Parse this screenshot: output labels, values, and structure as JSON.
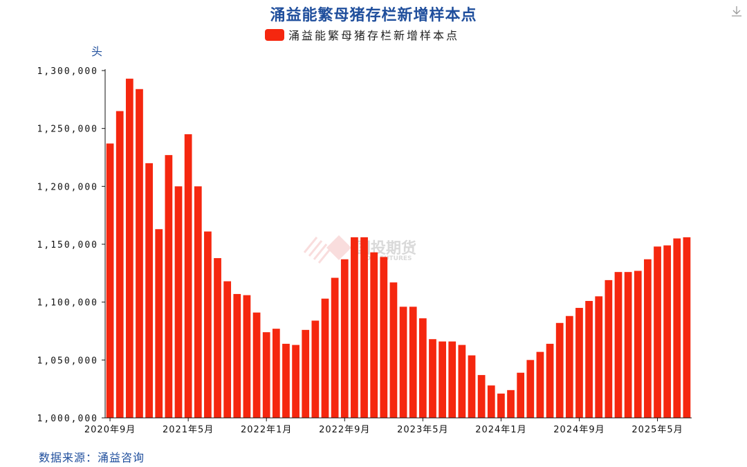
{
  "title": "涌益能繁母猪存栏新增样本点",
  "legend_label": "涌益能繁母猪存栏新增样本点",
  "source": "数据来源：涌益咨询",
  "watermark": {
    "text": "国投期货",
    "subtext": "SDIC FUTURES"
  },
  "download_icon": "download-icon",
  "colors": {
    "bar": "#f5270f",
    "title": "#1f4e9c",
    "axis": "#111111"
  },
  "chart_data": {
    "type": "bar",
    "title": "涌益能繁母猪存栏新增样本点",
    "ylabel": "头",
    "ylim": [
      1000000,
      1300000
    ],
    "yticks": [
      1000000,
      1050000,
      1100000,
      1150000,
      1200000,
      1250000,
      1300000
    ],
    "ytick_labels": [
      "1,000,000",
      "1,050,000",
      "1,100,000",
      "1,150,000",
      "1,200,000",
      "1,250,000",
      "1,300,000"
    ],
    "xtick_labels": [
      {
        "index": 0,
        "label": "2020年9月"
      },
      {
        "index": 8,
        "label": "2021年5月"
      },
      {
        "index": 16,
        "label": "2022年1月"
      },
      {
        "index": 24,
        "label": "2022年9月"
      },
      {
        "index": 32,
        "label": "2023年5月"
      },
      {
        "index": 40,
        "label": "2024年1月"
      },
      {
        "index": 48,
        "label": "2024年9月"
      },
      {
        "index": 56,
        "label": "2025年5月"
      }
    ],
    "categories": [
      "2020-09",
      "2020-10",
      "2020-11",
      "2020-12",
      "2021-01",
      "2021-02",
      "2021-03",
      "2021-04",
      "2021-05",
      "2021-06",
      "2021-07",
      "2021-08",
      "2021-09",
      "2021-10",
      "2021-11",
      "2021-12",
      "2022-01",
      "2022-02",
      "2022-03",
      "2022-04",
      "2022-05",
      "2022-06",
      "2022-07",
      "2022-08",
      "2022-09",
      "2022-10",
      "2022-11",
      "2022-12",
      "2023-01",
      "2023-02",
      "2023-03",
      "2023-04",
      "2023-05",
      "2023-06",
      "2023-07",
      "2023-08",
      "2023-09",
      "2023-10",
      "2023-11",
      "2023-12",
      "2024-01",
      "2024-02",
      "2024-03",
      "2024-04",
      "2024-05",
      "2024-06",
      "2024-07",
      "2024-08",
      "2024-09",
      "2024-10",
      "2024-11",
      "2024-12",
      "2025-01",
      "2025-02",
      "2025-03",
      "2025-04",
      "2025-05",
      "2025-06",
      "2025-07",
      "2025-08"
    ],
    "values": [
      1237000,
      1265000,
      1293000,
      1284000,
      1220000,
      1163000,
      1227000,
      1200000,
      1245000,
      1200000,
      1161000,
      1138000,
      1118000,
      1107000,
      1106000,
      1091000,
      1074000,
      1077000,
      1064000,
      1063000,
      1076000,
      1084000,
      1103000,
      1121000,
      1137000,
      1156000,
      1156000,
      1143000,
      1139000,
      1117000,
      1096000,
      1096000,
      1086000,
      1068000,
      1066000,
      1066000,
      1063000,
      1054000,
      1037000,
      1028000,
      1021000,
      1024000,
      1039000,
      1050000,
      1057000,
      1064000,
      1082000,
      1088000,
      1095000,
      1101000,
      1105000,
      1119000,
      1126000,
      1126000,
      1127000,
      1137000,
      1148000,
      1149000,
      1155000,
      1156000
    ],
    "grid": false
  }
}
